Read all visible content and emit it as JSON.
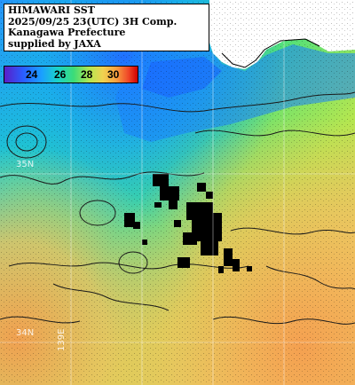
{
  "title": {
    "line1": "HIMAWARI SST",
    "line2": "2025/09/25 23(UTC) 3H Comp.",
    "line3": "Kanagawa Prefecture",
    "line4": "supplied by JAXA"
  },
  "legend": {
    "ticks": [
      "24",
      "26",
      "28",
      "30"
    ],
    "colors": {
      "c22": "#5a1ec8",
      "c24": "#1a70ff",
      "c26": "#1ad2c8",
      "c28": "#b4e650",
      "c30": "#f04828"
    }
  },
  "grid_labels": {
    "lat_upper": "35N",
    "lat_lower": "34N",
    "lon": "139E"
  },
  "colors": {
    "land": "#ffffff",
    "cloud": "#000000",
    "contour": "#1a1a1a",
    "grid": "#ffffff"
  }
}
